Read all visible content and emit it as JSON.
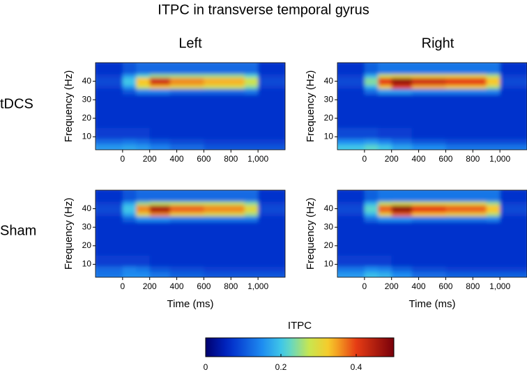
{
  "figure": {
    "title": "ITPC in transverse temporal gyrus",
    "columns": [
      "Left",
      "Right"
    ],
    "rows": [
      "tDCS",
      "Sham"
    ],
    "colorbar": {
      "label": "ITPC",
      "lim": [
        0,
        0.5
      ],
      "ticks": [
        0,
        0.2,
        0.4
      ]
    }
  },
  "chart_data": [
    {
      "type": "heatmap",
      "ylabel": "Frequency (Hz)",
      "x_bins": [
        -200,
        0,
        100,
        200,
        350,
        600,
        900,
        1000,
        1200
      ],
      "y_bins": [
        3,
        6,
        9,
        15,
        25,
        33,
        36,
        38,
        42,
        44,
        50
      ],
      "xlim": [
        -200,
        1200
      ],
      "ylim": [
        3,
        50
      ],
      "xticks": [
        0,
        200,
        400,
        600,
        800,
        {
          "value": 1000,
          "label": "1,000"
        }
      ],
      "yticks": [
        10,
        20,
        30,
        40
      ],
      "z": [
        [
          0.16,
          0.17,
          0.16,
          0.14,
          0.12,
          0.1,
          0.1,
          0.1
        ],
        [
          0.12,
          0.13,
          0.12,
          0.1,
          0.09,
          0.08,
          0.08,
          0.08
        ],
        [
          0.08,
          0.08,
          0.08,
          0.07,
          0.07,
          0.07,
          0.07,
          0.07
        ],
        [
          0.07,
          0.07,
          0.07,
          0.07,
          0.07,
          0.07,
          0.07,
          0.07
        ],
        [
          0.07,
          0.07,
          0.07,
          0.07,
          0.07,
          0.07,
          0.07,
          0.07
        ],
        [
          0.07,
          0.1,
          0.14,
          0.14,
          0.12,
          0.12,
          0.13,
          0.07
        ],
        [
          0.08,
          0.16,
          0.28,
          0.33,
          0.3,
          0.28,
          0.24,
          0.08
        ],
        [
          0.09,
          0.2,
          0.33,
          0.42,
          0.36,
          0.34,
          0.28,
          0.09
        ],
        [
          0.08,
          0.16,
          0.22,
          0.25,
          0.25,
          0.25,
          0.22,
          0.08
        ],
        [
          0.07,
          0.1,
          0.12,
          0.12,
          0.12,
          0.12,
          0.12,
          0.07
        ]
      ]
    },
    {
      "type": "heatmap",
      "ylabel": "Frequency (Hz)",
      "x_bins": [
        -200,
        0,
        100,
        200,
        350,
        600,
        900,
        1000,
        1200
      ],
      "y_bins": [
        3,
        6,
        9,
        15,
        25,
        33,
        36,
        38,
        42,
        44,
        50
      ],
      "xlim": [
        -200,
        1200
      ],
      "ylim": [
        3,
        50
      ],
      "xticks": [
        0,
        200,
        400,
        600,
        800,
        {
          "value": 1000,
          "label": "1,000"
        }
      ],
      "yticks": [
        10,
        20,
        30,
        40
      ],
      "z": [
        [
          0.2,
          0.22,
          0.2,
          0.17,
          0.15,
          0.13,
          0.13,
          0.13
        ],
        [
          0.15,
          0.16,
          0.14,
          0.12,
          0.1,
          0.09,
          0.09,
          0.09
        ],
        [
          0.09,
          0.09,
          0.08,
          0.08,
          0.07,
          0.07,
          0.07,
          0.07
        ],
        [
          0.07,
          0.07,
          0.07,
          0.07,
          0.07,
          0.07,
          0.07,
          0.07
        ],
        [
          0.07,
          0.07,
          0.07,
          0.07,
          0.07,
          0.07,
          0.07,
          0.07
        ],
        [
          0.07,
          0.12,
          0.16,
          0.16,
          0.14,
          0.14,
          0.14,
          0.07
        ],
        [
          0.08,
          0.18,
          0.32,
          0.4,
          0.34,
          0.32,
          0.26,
          0.08
        ],
        [
          0.09,
          0.24,
          0.4,
          0.47,
          0.42,
          0.4,
          0.33,
          0.09
        ],
        [
          0.08,
          0.18,
          0.28,
          0.3,
          0.3,
          0.3,
          0.26,
          0.08
        ],
        [
          0.07,
          0.11,
          0.13,
          0.13,
          0.13,
          0.13,
          0.13,
          0.07
        ]
      ]
    },
    {
      "type": "heatmap",
      "xlabel": "Time (ms)",
      "ylabel": "Frequency (Hz)",
      "x_bins": [
        -200,
        0,
        100,
        200,
        350,
        600,
        900,
        1000,
        1200
      ],
      "y_bins": [
        3,
        6,
        9,
        15,
        25,
        33,
        36,
        38,
        42,
        44,
        50
      ],
      "xlim": [
        -200,
        1200
      ],
      "ylim": [
        3,
        50
      ],
      "xticks": [
        0,
        200,
        400,
        600,
        800,
        {
          "value": 1000,
          "label": "1,000"
        }
      ],
      "yticks": [
        10,
        20,
        30,
        40
      ],
      "z": [
        [
          0.13,
          0.15,
          0.15,
          0.13,
          0.11,
          0.1,
          0.1,
          0.1
        ],
        [
          0.12,
          0.14,
          0.13,
          0.1,
          0.09,
          0.08,
          0.08,
          0.08
        ],
        [
          0.08,
          0.08,
          0.08,
          0.07,
          0.07,
          0.07,
          0.07,
          0.07
        ],
        [
          0.07,
          0.07,
          0.07,
          0.07,
          0.07,
          0.07,
          0.07,
          0.07
        ],
        [
          0.07,
          0.07,
          0.07,
          0.07,
          0.07,
          0.07,
          0.07,
          0.07
        ],
        [
          0.07,
          0.11,
          0.15,
          0.15,
          0.13,
          0.13,
          0.13,
          0.07
        ],
        [
          0.08,
          0.17,
          0.3,
          0.36,
          0.31,
          0.29,
          0.25,
          0.08
        ],
        [
          0.09,
          0.2,
          0.36,
          0.45,
          0.38,
          0.36,
          0.3,
          0.09
        ],
        [
          0.08,
          0.17,
          0.25,
          0.27,
          0.27,
          0.27,
          0.24,
          0.08
        ],
        [
          0.07,
          0.1,
          0.12,
          0.12,
          0.12,
          0.12,
          0.12,
          0.07
        ]
      ]
    },
    {
      "type": "heatmap",
      "xlabel": "Time (ms)",
      "ylabel": "Frequency (Hz)",
      "x_bins": [
        -200,
        0,
        100,
        200,
        350,
        600,
        900,
        1000,
        1200
      ],
      "y_bins": [
        3,
        6,
        9,
        15,
        25,
        33,
        36,
        38,
        42,
        44,
        50
      ],
      "xlim": [
        -200,
        1200
      ],
      "ylim": [
        3,
        50
      ],
      "xticks": [
        0,
        200,
        400,
        600,
        800,
        {
          "value": 1000,
          "label": "1,000"
        }
      ],
      "yticks": [
        10,
        20,
        30,
        40
      ],
      "z": [
        [
          0.16,
          0.19,
          0.18,
          0.15,
          0.12,
          0.11,
          0.11,
          0.11
        ],
        [
          0.13,
          0.15,
          0.14,
          0.11,
          0.09,
          0.08,
          0.08,
          0.08
        ],
        [
          0.08,
          0.08,
          0.08,
          0.07,
          0.07,
          0.07,
          0.07,
          0.07
        ],
        [
          0.07,
          0.07,
          0.07,
          0.07,
          0.07,
          0.07,
          0.07,
          0.07
        ],
        [
          0.07,
          0.07,
          0.07,
          0.07,
          0.07,
          0.07,
          0.07,
          0.07
        ],
        [
          0.07,
          0.12,
          0.15,
          0.15,
          0.13,
          0.13,
          0.14,
          0.07
        ],
        [
          0.08,
          0.18,
          0.31,
          0.38,
          0.33,
          0.31,
          0.26,
          0.08
        ],
        [
          0.09,
          0.22,
          0.38,
          0.47,
          0.4,
          0.38,
          0.33,
          0.09
        ],
        [
          0.08,
          0.18,
          0.27,
          0.29,
          0.29,
          0.29,
          0.25,
          0.08
        ],
        [
          0.07,
          0.11,
          0.13,
          0.13,
          0.13,
          0.13,
          0.13,
          0.07
        ]
      ]
    }
  ]
}
